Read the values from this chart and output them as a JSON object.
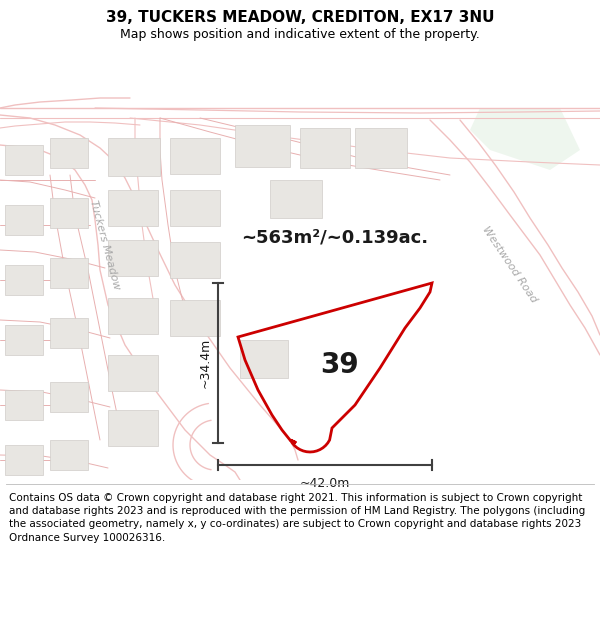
{
  "title": "39, TUCKERS MEADOW, CREDITON, EX17 3NU",
  "subtitle": "Map shows position and indicative extent of the property.",
  "footer": "Contains OS data © Crown copyright and database right 2021. This information is subject to Crown copyright and database rights 2023 and is reproduced with the permission of HM Land Registry. The polygons (including the associated geometry, namely x, y co-ordinates) are subject to Crown copyright and database rights 2023 Ordnance Survey 100026316.",
  "area_label": "~563m²/~0.139ac.",
  "dim_h": "~34.4m",
  "dim_w": "~42.0m",
  "number_label": "39",
  "road_label1": "Tuckers Meadow",
  "road_label2": "Westwood Road",
  "map_bg": "#ffffff",
  "road_color": "#f0c0c0",
  "road_color2": "#e8b0b0",
  "building_face": "#e8e6e2",
  "building_edge": "#d0ccc8",
  "green_face": "#deeede",
  "poly_edge": "#cc0000",
  "poly_face": "none",
  "dim_color": "#404040",
  "label_color": "#1a1a1a",
  "road_label_color": "#aaaaaa",
  "title_fontsize": 11,
  "subtitle_fontsize": 9,
  "footer_fontsize": 7.5,
  "area_fontsize": 13,
  "number_fontsize": 20,
  "dim_fontsize": 9,
  "street_fontsize": 8
}
